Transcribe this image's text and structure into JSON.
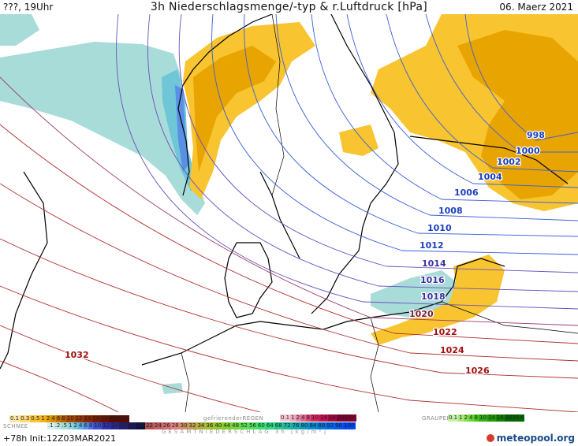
{
  "header": {
    "left": "???, 19Uhr",
    "title": "3h Niederschlagsmenge/-typ & r.Luftdruck [hPa]",
    "date": "06. Maerz 2021"
  },
  "isobars": {
    "labels": [
      {
        "text": "998",
        "color": "#1a3fbf"
      },
      {
        "text": "1000",
        "color": "#1a3fbf"
      },
      {
        "text": "1002",
        "color": "#1a3fbf"
      },
      {
        "text": "1004",
        "color": "#1a3fbf"
      },
      {
        "text": "1006",
        "color": "#1a3fbf"
      },
      {
        "text": "1008",
        "color": "#1a3fbf"
      },
      {
        "text": "1010",
        "color": "#1a3fbf"
      },
      {
        "text": "1012",
        "color": "#1a3fbf"
      },
      {
        "text": "1014",
        "color": "#3a2fa0"
      },
      {
        "text": "1016",
        "color": "#3a2fa0"
      },
      {
        "text": "1018",
        "color": "#3a2fa0"
      },
      {
        "text": "1020",
        "color": "#7a1a3a"
      },
      {
        "text": "1022",
        "color": "#a01010"
      },
      {
        "text": "1024",
        "color": "#a01010"
      },
      {
        "text": "1026",
        "color": "#a01010"
      },
      {
        "text": "1032",
        "color": "#a01010"
      }
    ]
  },
  "legend": {
    "rain_values": [
      "0.1",
      "0.3",
      "0.5",
      "1",
      "2",
      "4",
      "6",
      "8",
      "10",
      "12",
      "14",
      "16",
      "18",
      "2025+"
    ],
    "snow_title": "SCHNEE",
    "snow_values": [
      ".1",
      ".2",
      ".5",
      "1",
      "2",
      "4",
      "6",
      "8",
      "10",
      "12",
      "14",
      "16",
      "18",
      "20",
      "22",
      "24",
      "26",
      "28",
      "30",
      "32",
      "34",
      "36",
      "40",
      "44",
      "48",
      "52",
      "56",
      "60",
      "64",
      "68",
      "72",
      "76",
      "80",
      "84",
      "88",
      "92",
      "96",
      "100"
    ],
    "freezing_title": "gefrierenderREGEN",
    "freezing_values": [
      "0.1",
      "1",
      "2",
      "4",
      "8",
      "10",
      "14",
      "16",
      "2025+"
    ],
    "graupel_title": "GRAUPEL",
    "graupel_values": [
      "0.1",
      "1",
      "2",
      "4",
      "8",
      "10",
      "14",
      "16",
      "2025+"
    ],
    "total_title": "GESAMTNIEDERSCHLAG 3h [kg/m²]"
  },
  "footer": {
    "run": "+78h Init:12Z03MAR2021",
    "logo": "meteopool.org"
  },
  "colors": {
    "rain_light": "#f8c430",
    "rain_mid": "#e8a400",
    "snow_light": "#a8dcd8",
    "snow_mid": "#6fc6d6",
    "snow_blue": "#5a8fe6",
    "isobar_low": "#1a3fbf",
    "isobar_high": "#a01010"
  }
}
